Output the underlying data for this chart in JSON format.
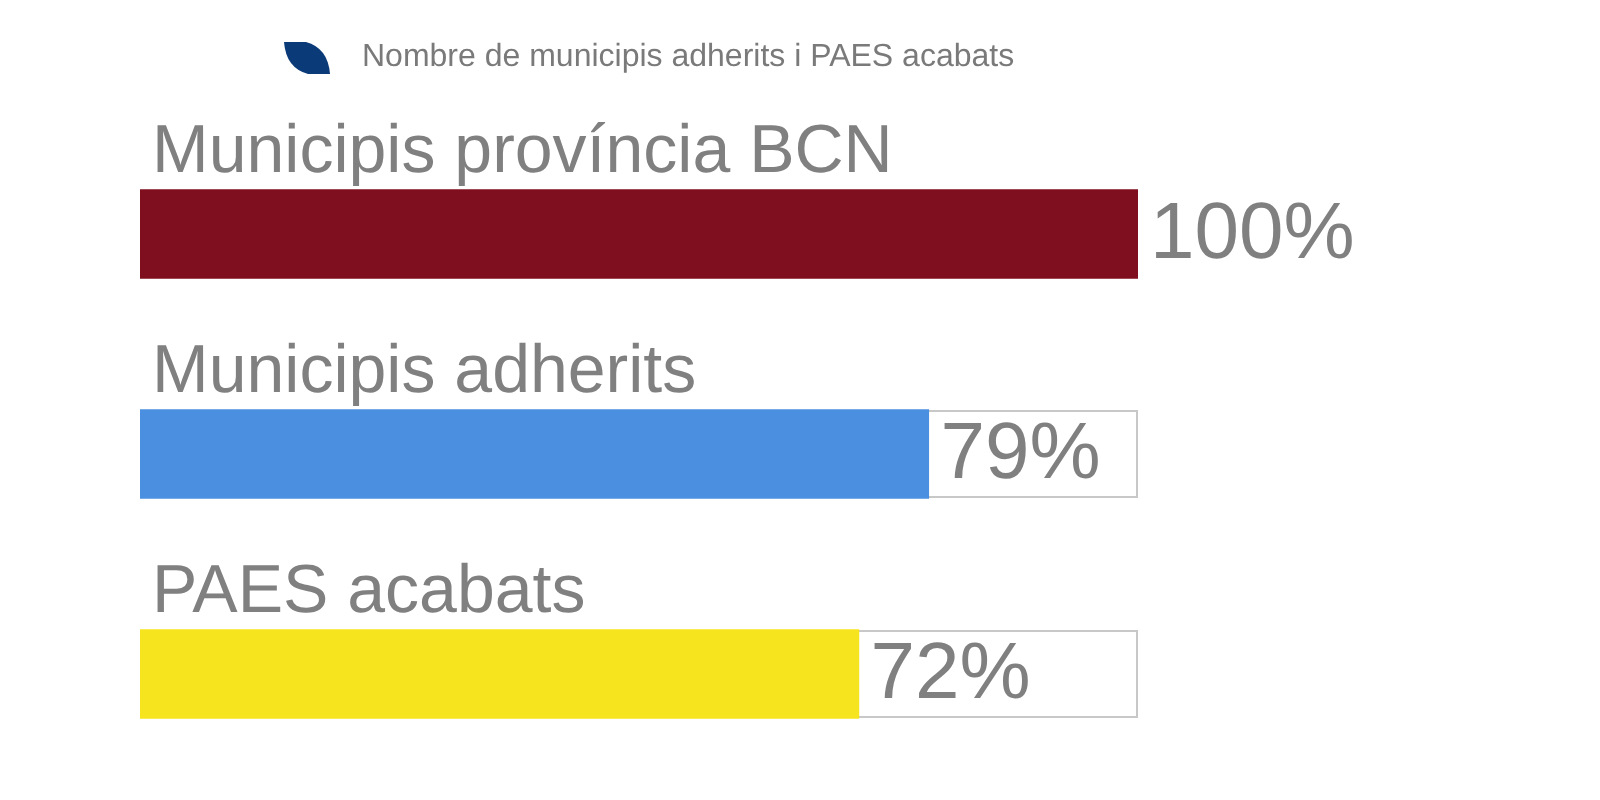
{
  "chart_data": {
    "type": "bar",
    "orientation": "horizontal",
    "title": "Nombre de municipis adherits i PAES acabats",
    "categories": [
      "Municipis província BCN",
      "Municipis adherits",
      "PAES acabats"
    ],
    "values": [
      100,
      79,
      72
    ],
    "colors": [
      "#7f0f1e",
      "#4a8fe0",
      "#f6e51e"
    ],
    "xlim": [
      0,
      100
    ],
    "value_labels": [
      "100%",
      "79%",
      "72%"
    ],
    "tick_labels": "y"
  }
}
